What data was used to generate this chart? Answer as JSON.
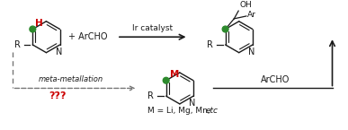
{
  "background": "#ffffff",
  "green": "#2d8a2d",
  "red": "#cc0000",
  "black": "#1a1a1a",
  "gray": "#777777",
  "ir_catalyst": "Ir catalyst",
  "plus_archo": "+ ArCHO",
  "meta_label": "meta-metallation",
  "qqq_label": "???",
  "M_eq": "M = Li, Mg, Mn, ",
  "etc_label": "etc",
  "archo_label": "ArCHO",
  "oh_label": "OH",
  "ar_label": "Ar",
  "r_label": "R",
  "n_label": "N",
  "m_label": "M",
  "h_label": "H"
}
